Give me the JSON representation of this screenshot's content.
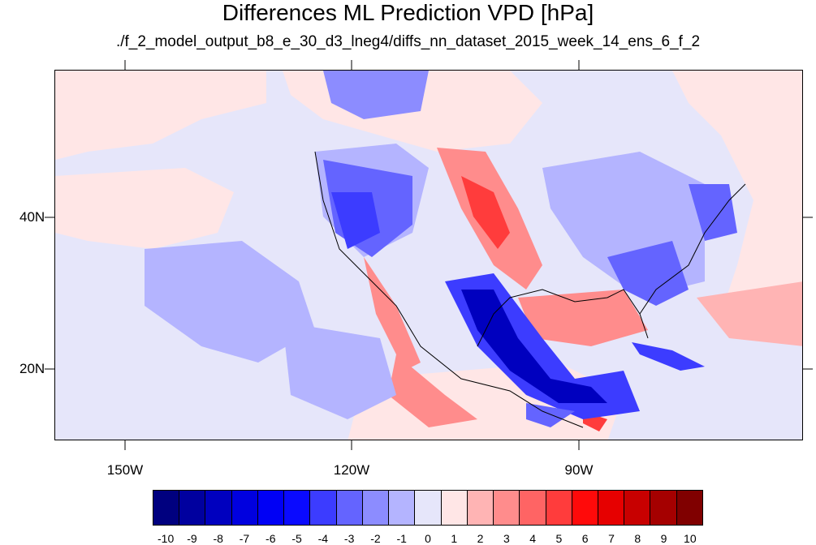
{
  "title": "Differences ML Prediction VPD [hPa]",
  "subtitle": "./f_2_model_output_b8_e_30_d3_lneg4/diffs_nn_dataset_2015_week_14_ens_6_f_2",
  "lat_labels": [
    "40N",
    "20N"
  ],
  "lon_labels": [
    "150W",
    "120W",
    "90W"
  ],
  "colorbar": {
    "labels": [
      "-10",
      "-9",
      "-8",
      "-7",
      "-6",
      "-5",
      "-4",
      "-3",
      "-2",
      "-1",
      "0",
      "1",
      "2",
      "3",
      "4",
      "5",
      "6",
      "7",
      "8",
      "9",
      "10"
    ],
    "colors": [
      "#00007f",
      "#00009f",
      "#0000bf",
      "#0000df",
      "#0000f5",
      "#0a0aff",
      "#3c3cff",
      "#6464ff",
      "#8c8cff",
      "#b4b4ff",
      "#e6e6fa",
      "#ffe6e6",
      "#ffb4b4",
      "#ff8c8c",
      "#ff6464",
      "#ff3c3c",
      "#ff0a0a",
      "#e60000",
      "#c80000",
      "#a50000",
      "#800000"
    ]
  },
  "colors": {
    "background": "#e6e6fa",
    "strong_blue": "#0000bf",
    "mid_blue": "#6464ff",
    "light_blue": "#b4b4ff",
    "strong_red": "#ff3c3c",
    "light_red": "#ffe6e6"
  }
}
